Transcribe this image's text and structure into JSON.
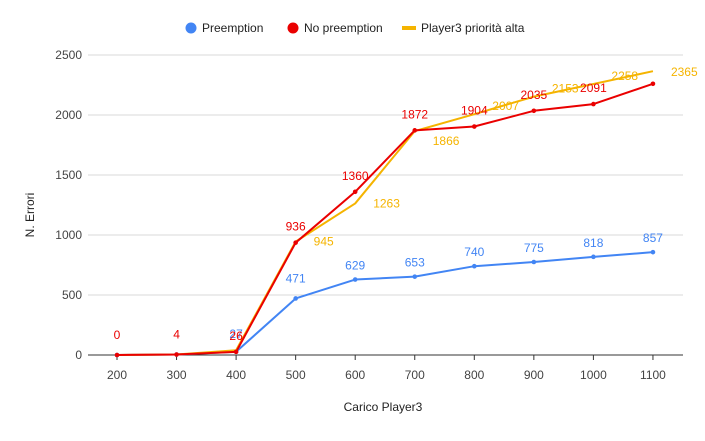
{
  "chart_data": {
    "type": "line",
    "title": "",
    "xlabel": "Carico Player3",
    "ylabel": "N. Errori",
    "x": [
      200,
      300,
      400,
      500,
      600,
      700,
      800,
      900,
      1000,
      1100
    ],
    "ylim": [
      0,
      2500
    ],
    "yticks": [
      0,
      500,
      1000,
      1500,
      2000,
      2500
    ],
    "grid": true,
    "legend_position": "top",
    "series": [
      {
        "name": "Preemption",
        "color": "#4285f4",
        "values": [
          0,
          4,
          27,
          471,
          629,
          653,
          740,
          775,
          818,
          857
        ],
        "labels": [
          "",
          "",
          "27",
          "471",
          "629",
          "653",
          "740",
          "775",
          "818",
          "857"
        ],
        "markers": true
      },
      {
        "name": "No preemption",
        "color": "#ea0000",
        "values": [
          0,
          4,
          26,
          936,
          1360,
          1872,
          1904,
          2035,
          2091,
          2260
        ],
        "labels": [
          "0",
          "4",
          "26",
          "936",
          "1360",
          "1872",
          "1904",
          "2035",
          "2091",
          ""
        ],
        "markers": true
      },
      {
        "name": "Player3 priorità alta",
        "color": "#f5b400",
        "values": [
          0,
          4,
          40,
          945,
          1263,
          1866,
          2007,
          2153,
          2258,
          2365
        ],
        "labels": [
          "",
          "",
          "",
          "945",
          "1263",
          "1866",
          "2007",
          "2153",
          "2258",
          "2365"
        ],
        "markers": false
      }
    ]
  }
}
